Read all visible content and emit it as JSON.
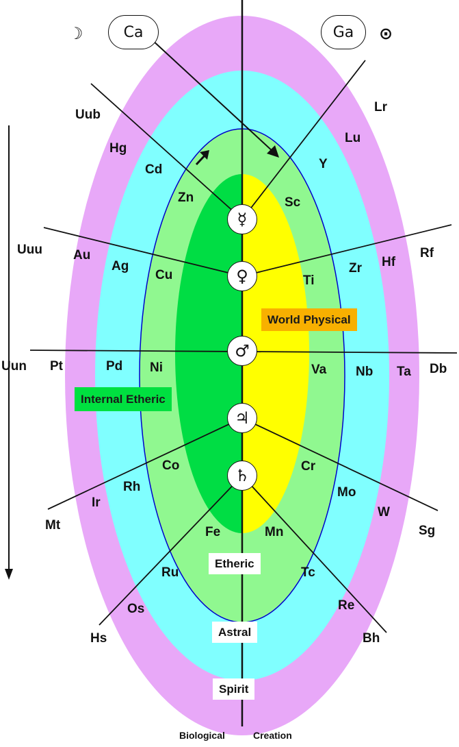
{
  "header": {
    "ion_left": "Ca",
    "ion_right": "Ga",
    "moon_symbol": "☽",
    "sun_symbol": "⊙"
  },
  "planets": {
    "mercury": "☿",
    "venus": "♀",
    "mars": "♂",
    "jupiter": "♃",
    "saturn": "♄"
  },
  "elements": {
    "uub": "Uub",
    "hg": "Hg",
    "cd": "Cd",
    "zn": "Zn",
    "lr": "Lr",
    "lu": "Lu",
    "y": "Y",
    "sc": "Sc",
    "uuu": "Uuu",
    "au": "Au",
    "ag": "Ag",
    "cu": "Cu",
    "rf": "Rf",
    "hf": "Hf",
    "zr": "Zr",
    "ti": "Ti",
    "uun": "Uun",
    "pt": "Pt",
    "pd": "Pd",
    "ni": "Ni",
    "va": "Va",
    "nb": "Nb",
    "ta": "Ta",
    "db": "Db",
    "co": "Co",
    "rh": "Rh",
    "ir": "Ir",
    "mt": "Mt",
    "cr": "Cr",
    "mo": "Mo",
    "w": "W",
    "sg": "Sg",
    "fe": "Fe",
    "ru": "Ru",
    "os": "Os",
    "hs": "Hs",
    "mn": "Mn",
    "tc": "Tc",
    "re": "Re",
    "bh": "Bh"
  },
  "labels": {
    "world_physical": "World Physical",
    "internal_etheric": "Internal  Etheric",
    "etheric": "Etheric",
    "astral": "Astral",
    "spirit": "Spirit"
  },
  "footer": {
    "word1": "Biological",
    "word2": "Creation"
  },
  "colors": {
    "outer_ring": "#e8a8f8",
    "second_ring": "#80ffff",
    "third_ring": "#90f890",
    "inner_left": "#00dd44",
    "inner_right": "#ffff00",
    "world_physical_box": "#f8b000",
    "internal_etheric_box": "#00e040"
  }
}
